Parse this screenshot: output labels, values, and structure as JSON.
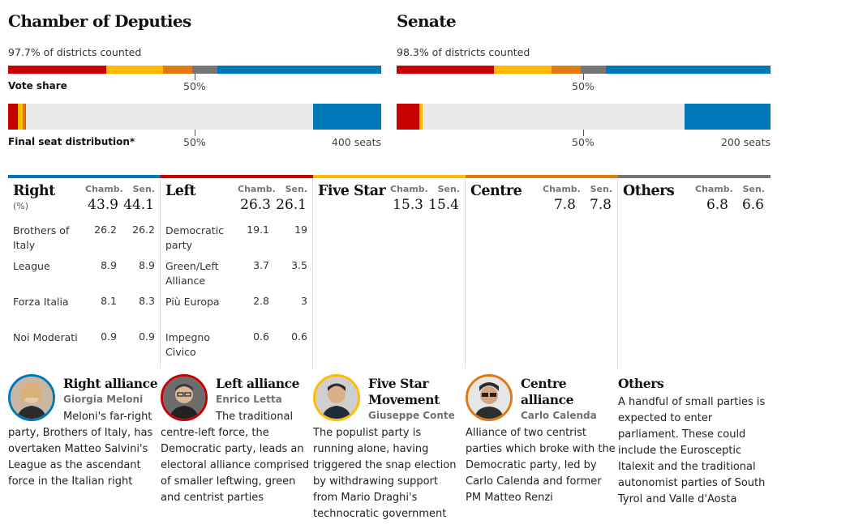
{
  "colors": {
    "right": "#0077b6",
    "left": "#c70000",
    "five_star": "#ffbb00",
    "centre": "#e07a10",
    "others": "#767676",
    "blank": "#e9e9e9"
  },
  "chamber": {
    "title": "Chamber of Deputies",
    "counted": "97.7% of districts counted",
    "vote_share_label": "Vote share",
    "half_label": "50%",
    "seat_label": "Final seat distribution*",
    "total_label": "400 seats"
  },
  "senate": {
    "title": "Senate",
    "counted": "98.3% of districts counted",
    "half_label": "50%",
    "total_label": "200 seats"
  },
  "chart_data": [
    {
      "type": "bar",
      "title": "Chamber of Deputies",
      "subtitle": "97.7% of districts counted",
      "xlabel": "Vote share",
      "categories": [
        "Left",
        "Five Star",
        "Centre",
        "Others",
        "Right"
      ],
      "values": [
        26.3,
        15.3,
        7.8,
        6.8,
        43.9
      ],
      "xlim": [
        0,
        100
      ],
      "seats": {
        "label": "Final seat distribution*",
        "total": 400,
        "categories": [
          "Left",
          "Five Star",
          "Centre",
          "Others",
          "Right"
        ],
        "values": [
          10,
          6,
          2,
          1,
          73
        ]
      }
    },
    {
      "type": "bar",
      "title": "Senate",
      "subtitle": "98.3% of districts counted",
      "categories": [
        "Left",
        "Five Star",
        "Centre",
        "Others",
        "Right"
      ],
      "values": [
        26.1,
        15.4,
        7.8,
        6.6,
        44.1
      ],
      "xlim": [
        0,
        100
      ],
      "seats": {
        "total": 200,
        "categories": [
          "Left",
          "Five Star",
          "Centre",
          "Others",
          "Right"
        ],
        "values": [
          12,
          2,
          0,
          0,
          46
        ]
      }
    },
    {
      "type": "table",
      "columns": [
        "Chamb.",
        "Sen."
      ],
      "groups": [
        {
          "name": "Right",
          "unit": "(%)",
          "key": "right",
          "chamb": "43.9",
          "sen": "44.1",
          "parties": [
            {
              "name": "Brothers of Italy",
              "chamb": "26.2",
              "sen": "26.2"
            },
            {
              "name": "League",
              "chamb": "8.9",
              "sen": "8.9"
            },
            {
              "name": "Forza Italia",
              "chamb": "8.1",
              "sen": "8.3"
            },
            {
              "name": "Noi Moderati",
              "chamb": "0.9",
              "sen": "0.9"
            }
          ]
        },
        {
          "name": "Left",
          "key": "left",
          "chamb": "26.3",
          "sen": "26.1",
          "parties": [
            {
              "name": "Democratic party",
              "chamb": "19.1",
              "sen": "19"
            },
            {
              "name": "Green/Left Alliance",
              "chamb": "3.7",
              "sen": "3.5"
            },
            {
              "name": "Più Europa",
              "chamb": "2.8",
              "sen": "3"
            },
            {
              "name": "Impegno Civico",
              "chamb": "0.6",
              "sen": "0.6"
            }
          ]
        },
        {
          "name": "Five Star",
          "key": "five_star",
          "chamb": "15.3",
          "sen": "15.4",
          "parties": []
        },
        {
          "name": "Centre",
          "key": "centre",
          "chamb": "7.8",
          "sen": "7.8",
          "parties": []
        },
        {
          "name": "Others",
          "key": "others",
          "chamb": "6.8",
          "sen": "6.6",
          "parties": []
        }
      ]
    }
  ],
  "cards": [
    {
      "title": "Right alliance",
      "leader": "Giorgia Meloni",
      "avatar": "giorgia-meloni-photo",
      "desc": "Meloni's far-right party, Brothers of Italy, has overtaken Matteo Salvini's League as the ascendant force in the Italian right"
    },
    {
      "title": "Left alliance",
      "leader": "Enrico Letta",
      "avatar": "enrico-letta-photo",
      "desc": "The traditional centre-left force, the Democratic party, leads an electoral alliance comprised of smaller leftwing, green and centrist parties"
    },
    {
      "title": "Five Star Movement",
      "leader": "Giuseppe Conte",
      "avatar": "giuseppe-conte-photo",
      "desc": "The populist party is running alone, having triggered the snap election by withdrawing support from Mario Draghi's technocratic government"
    },
    {
      "title": "Centre alliance",
      "leader": "Carlo Calenda",
      "avatar": "carlo-calenda-photo",
      "desc": "Alliance of two centrist parties which broke with the Democratic party, led by Carlo Calenda and former PM Matteo Renzi"
    },
    {
      "title": "Others",
      "desc": "A handful of small parties is expected to enter parliament. These could include the Eurosceptic Italexit and the traditional autonomist parties of South Tyrol and Valle d'Aosta"
    }
  ]
}
